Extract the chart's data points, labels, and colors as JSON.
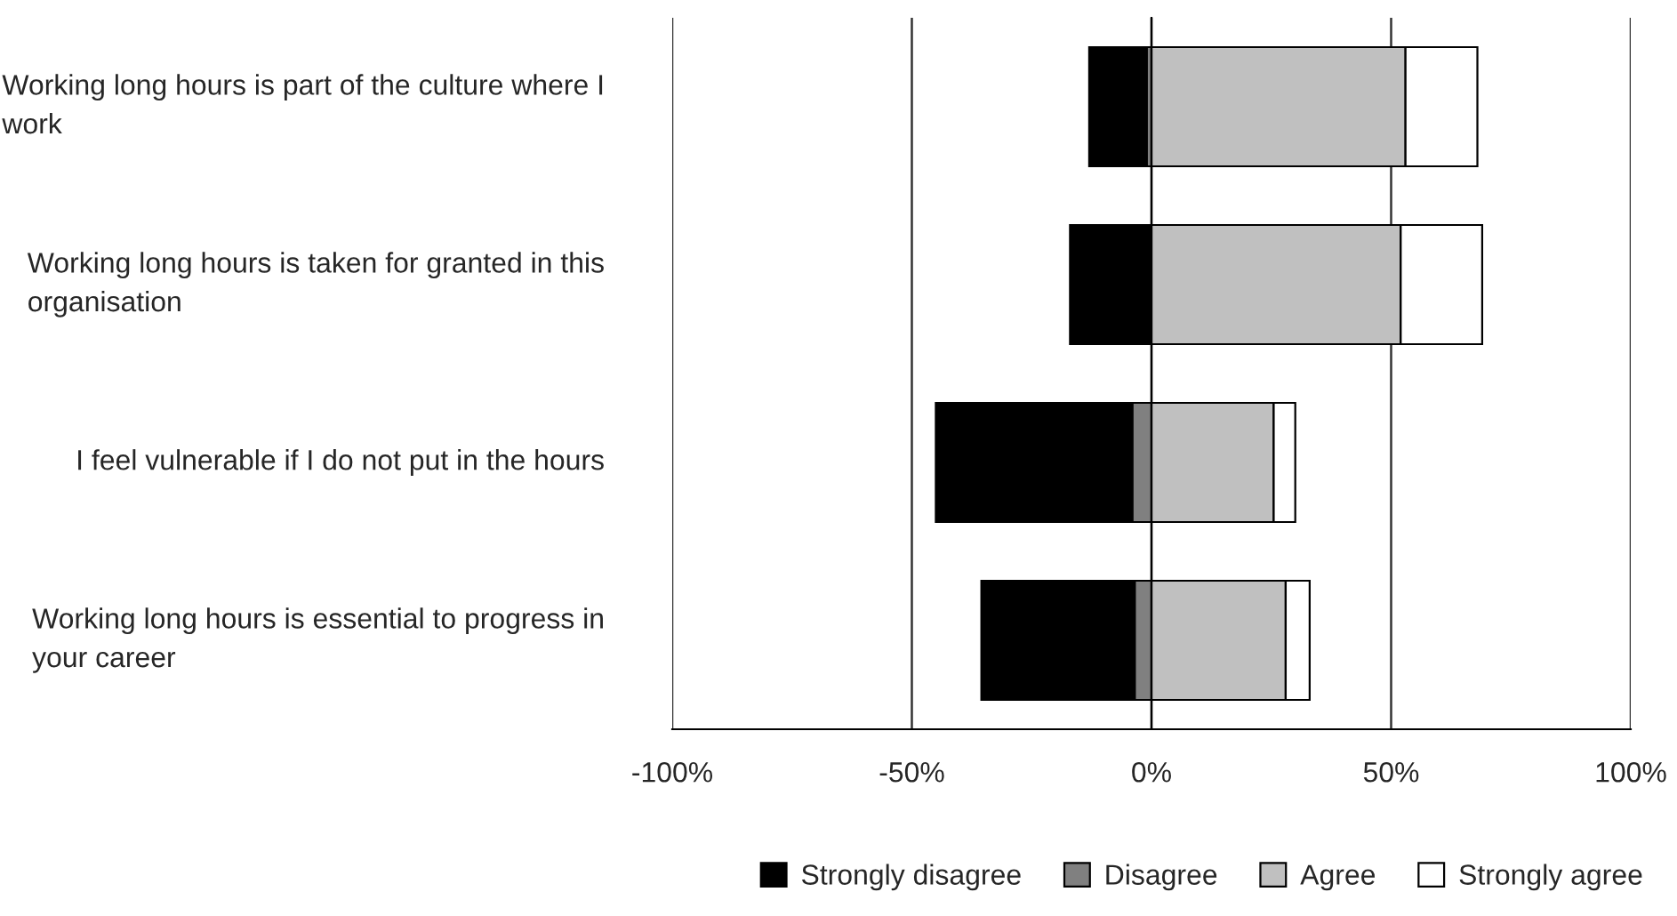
{
  "chart_data": {
    "type": "bar",
    "orientation": "horizontal",
    "stacked": true,
    "categories": [
      "Working long hours is part of the culture where I work",
      "Working long hours is taken for granted in this organisation",
      "I feel vulnerable if I do not put in the hours",
      "Working long hours is essential to progress in your career"
    ],
    "series": [
      {
        "name": "Disagree",
        "color": "#808080",
        "values": [
          -1,
          0,
          -4,
          -3.5
        ]
      },
      {
        "name": "Strongly disagree",
        "color": "#000000",
        "values": [
          -12,
          -17,
          -41,
          -32
        ]
      },
      {
        "name": "Agree",
        "color": "#c0c0c0",
        "values": [
          53,
          52,
          25.5,
          28
        ]
      },
      {
        "name": "Strongly agree",
        "color": "#ffffff",
        "values": [
          15,
          17,
          4.5,
          5
        ]
      }
    ],
    "xlim": [
      -100,
      100
    ],
    "xticks": [
      {
        "value": -100,
        "label": "-100%"
      },
      {
        "value": -50,
        "label": "-50%"
      },
      {
        "value": 0,
        "label": "0%"
      },
      {
        "value": 50,
        "label": "50%"
      },
      {
        "value": 100,
        "label": "100%"
      }
    ],
    "grid": "x",
    "legend": "bottom right"
  }
}
